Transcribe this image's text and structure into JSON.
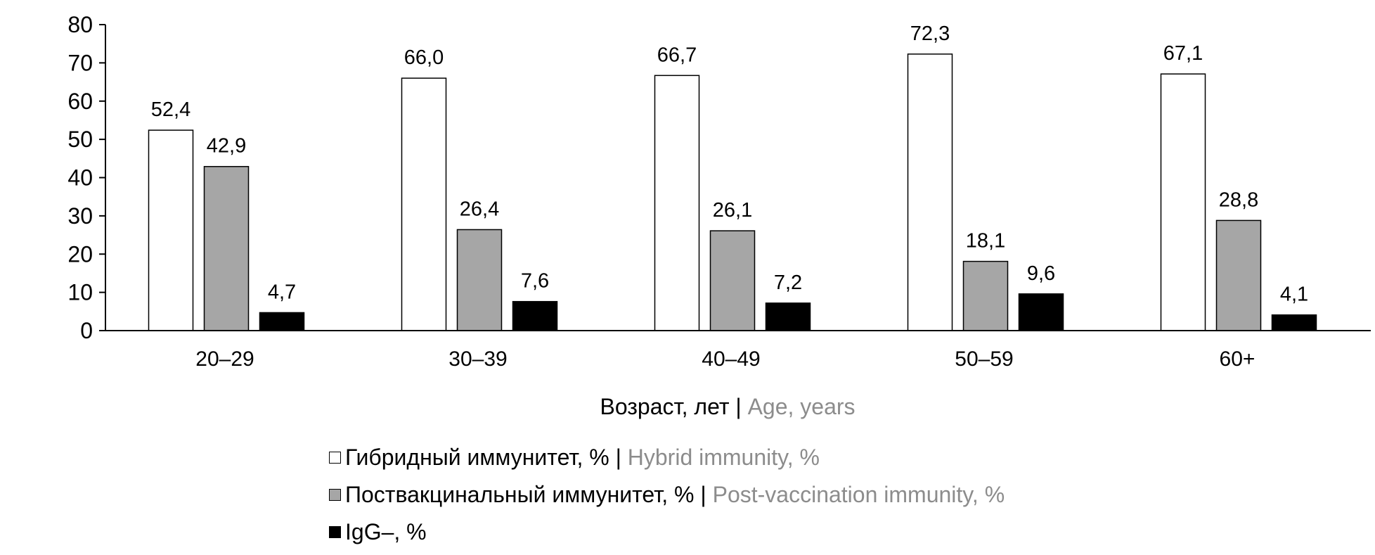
{
  "chart_data": {
    "type": "bar",
    "categories": [
      "20–29",
      "30–39",
      "40–49",
      "50–59",
      "60+"
    ],
    "series": [
      {
        "name": "Гибридный иммунитет, %",
        "name_en": "Hybrid immunity, %",
        "color": "#ffffff",
        "values": [
          52.4,
          66.0,
          66.7,
          72.3,
          67.1
        ],
        "labels": [
          "52,4",
          "66,0",
          "66,7",
          "72,3",
          "67,1"
        ]
      },
      {
        "name": "Поствакцинальный иммунитет, %",
        "name_en": "Post-vaccination immunity, %",
        "color": "#a6a6a6",
        "values": [
          42.9,
          26.4,
          26.1,
          18.1,
          28.8
        ],
        "labels": [
          "42,9",
          "26,4",
          "26,1",
          "18,1",
          "28,8"
        ]
      },
      {
        "name": "IgG–, %",
        "name_en": "",
        "color": "#000000",
        "values": [
          4.7,
          7.6,
          7.2,
          9.6,
          4.1
        ],
        "labels": [
          "4,7",
          "7,6",
          "7,2",
          "9,6",
          "4,1"
        ]
      }
    ],
    "xlabel": "Возраст, лет",
    "xlabel_en": "Age, years",
    "separator": "|",
    "ylabel": "",
    "ylim": [
      0,
      80
    ],
    "yticks": [
      0,
      10,
      20,
      30,
      40,
      50,
      60,
      70,
      80
    ],
    "grid": false,
    "legend_placement": "bottom"
  }
}
